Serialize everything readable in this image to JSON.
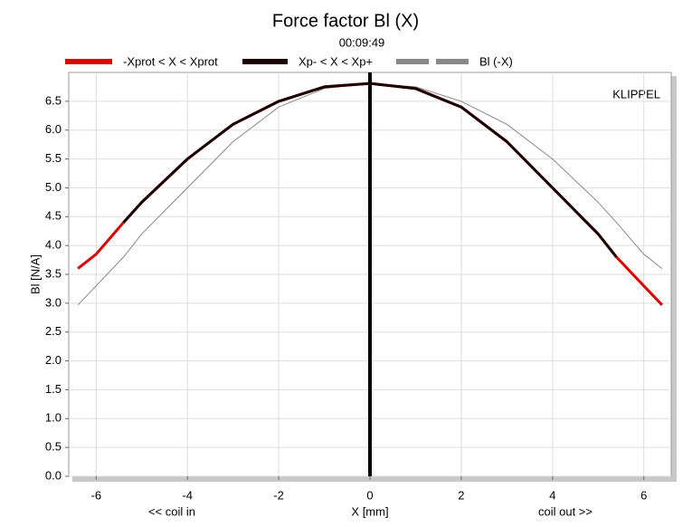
{
  "chart_data": {
    "type": "line",
    "title": "Force factor Bl (X)",
    "subtitle": "00:09:49",
    "watermark": "KLIPPEL",
    "ylabel": "Bl [N/A]",
    "xlabel": "X [mm]",
    "x_left_note": "<< coil in",
    "x_right_note": "coil out >>",
    "x": [
      -6.4,
      -6,
      -5.4,
      -5,
      -4,
      -3,
      -2,
      -1,
      0,
      1,
      2,
      3,
      4,
      5,
      5.4,
      6,
      6.4
    ],
    "series": [
      {
        "name": "-Xprot < X < Xprot",
        "color": "#e00000",
        "width": 3,
        "values": [
          3.6,
          3.85,
          4.4,
          4.75,
          5.5,
          6.1,
          6.5,
          6.75,
          6.81,
          6.72,
          6.4,
          5.8,
          5.0,
          4.2,
          3.8,
          3.3,
          2.97
        ]
      },
      {
        "name": "Xp- < X < Xp+",
        "color": "#1a0000",
        "width": 3,
        "values": [
          null,
          null,
          4.4,
          4.75,
          5.5,
          6.1,
          6.5,
          6.75,
          6.81,
          6.72,
          6.4,
          5.8,
          5.0,
          4.2,
          3.8,
          null,
          null
        ]
      },
      {
        "name": "Bl (-X)",
        "color": "#888888",
        "width": 1,
        "dashed_legend": true,
        "values": [
          2.97,
          3.3,
          3.8,
          4.2,
          5.0,
          5.8,
          6.4,
          6.72,
          6.81,
          6.75,
          6.5,
          6.1,
          5.5,
          4.75,
          4.4,
          3.85,
          3.6
        ]
      }
    ],
    "marker_x": 0,
    "xlim": [
      -6.6,
      6.6
    ],
    "ylim": [
      0,
      7.0
    ],
    "xticks": [
      -6,
      -4,
      -2,
      0,
      2,
      4,
      6
    ],
    "yticks": [
      {
        "value": 0,
        "label": "0.0"
      },
      0.5,
      {
        "value": 1,
        "label": "1.0"
      },
      1.5,
      {
        "value": 2,
        "label": "2.0"
      },
      2.5,
      {
        "value": 3,
        "label": "3.0"
      },
      3.5,
      {
        "value": 4,
        "label": "4.0"
      },
      4.5,
      {
        "value": 5,
        "label": "5.0"
      },
      5.5,
      {
        "value": 6,
        "label": "6.0"
      },
      6.5
    ],
    "grid": true
  }
}
